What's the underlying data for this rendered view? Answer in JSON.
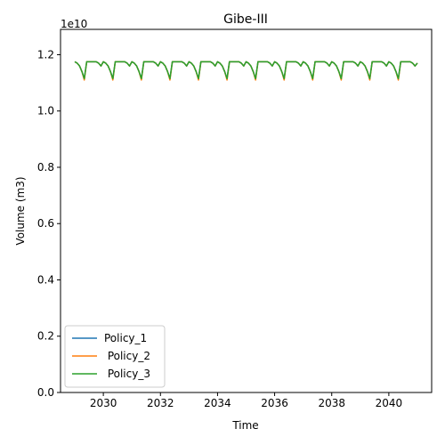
{
  "chart_data": {
    "type": "line",
    "title": "Gibe-III",
    "xlabel": "Time",
    "ylabel": "Volume (m3)",
    "y_offset_text": "1e10",
    "xlim": [
      2028.5,
      2041.5
    ],
    "ylim": [
      0.0,
      1.29
    ],
    "xticks": [
      2030,
      2032,
      2034,
      2036,
      2038,
      2040
    ],
    "xtick_labels": [
      "2030",
      "2032",
      "2034",
      "2036",
      "2038",
      "2040"
    ],
    "yticks": [
      0.0,
      0.2,
      0.4,
      0.6,
      0.8,
      1.0,
      1.2
    ],
    "ytick_labels": [
      "0.0",
      "0.2",
      "0.4",
      "0.6",
      "0.8",
      "1.0",
      "1.2"
    ],
    "legend_position": "lower-left",
    "cycle": {
      "start_year": 2029,
      "end_year": 2041,
      "month_fractions": [
        0.0,
        0.083,
        0.167,
        0.25,
        0.333,
        0.417,
        0.5,
        0.583,
        0.667,
        0.75,
        0.833,
        0.917
      ],
      "values": [
        1.175,
        1.17,
        1.16,
        1.14,
        1.115,
        1.175,
        1.175,
        1.175,
        1.175,
        1.175,
        1.17,
        1.16
      ],
      "end_value": 1.17
    },
    "series": [
      {
        "name": "Policy_1",
        "color": "#1f77b4",
        "trough_offset": 0.0
      },
      {
        "name": " Policy_2",
        "color": "#ff7f0e",
        "trough_offset": -0.005
      },
      {
        "name": " Policy_3",
        "color": "#2ca02c",
        "trough_offset": 0.0
      }
    ]
  }
}
